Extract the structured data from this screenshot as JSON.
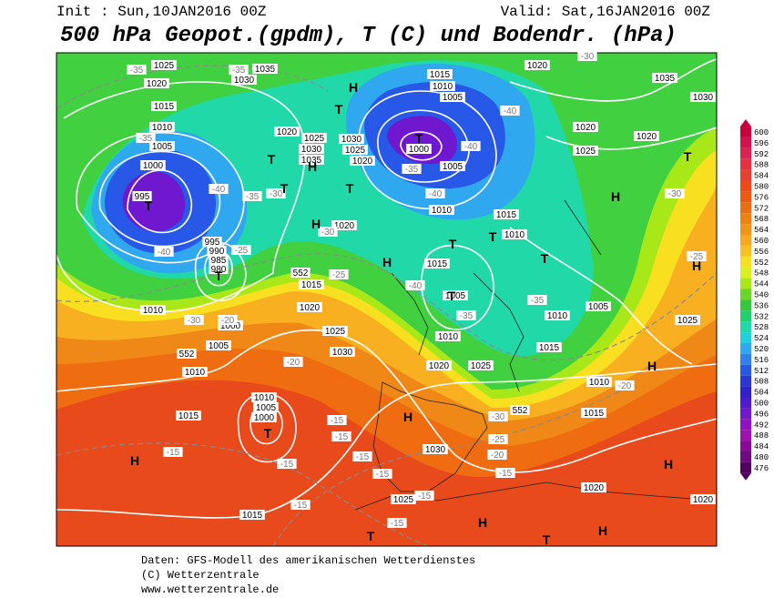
{
  "header": {
    "init": "Init : Sun,10JAN2016 00Z",
    "valid": "Valid: Sat,16JAN2016 00Z",
    "title": "500 hPa Geopot.(gpdm), T (C) und Bodendr. (hPa)"
  },
  "colorbar": {
    "levels": [
      600,
      596,
      592,
      588,
      584,
      580,
      576,
      572,
      568,
      564,
      560,
      556,
      552,
      548,
      544,
      540,
      536,
      532,
      528,
      524,
      520,
      516,
      512,
      508,
      504,
      500,
      496,
      492,
      488,
      484,
      480,
      476
    ],
    "colors": [
      "#c8003c",
      "#d8104c",
      "#e02050",
      "#e83040",
      "#e84030",
      "#f04818",
      "#f05a10",
      "#f06c10",
      "#f08010",
      "#f09418",
      "#f8a820",
      "#f8c020",
      "#f8e020",
      "#d8f020",
      "#a8e818",
      "#68d828",
      "#38c840",
      "#20d070",
      "#20d8a8",
      "#20d0e0",
      "#30a8f0",
      "#3080f0",
      "#2858e8",
      "#2838d8",
      "#3020d0",
      "#5018d0",
      "#7018d0",
      "#9010c8",
      "#a010b0",
      "#8c0898",
      "#700880",
      "#500060"
    ]
  },
  "map": {
    "pressure_labels": [
      1025,
      1020,
      1015,
      1010,
      1005,
      1000,
      995,
      1035,
      1030,
      1020,
      1025,
      1030,
      1035,
      1030,
      1025,
      1020,
      1015,
      1010,
      1005,
      1000,
      1005,
      1010,
      1020,
      1035,
      1030,
      1020,
      1025,
      1020,
      1015,
      1010,
      1015,
      1015,
      1020,
      1010,
      1000,
      1005,
      1010,
      1025,
      1030,
      1010,
      1020,
      1025,
      1015,
      1010,
      1005,
      1010,
      1025,
      1015,
      1010,
      1005,
      1000,
      1015,
      1030,
      1025,
      1020,
      1020,
      1015,
      995,
      990,
      985,
      980,
      1020,
      1005
    ],
    "temperature_labels": [
      -35,
      -35,
      -35,
      -40,
      -35,
      -30,
      -30,
      -40,
      -25,
      -25,
      -30,
      -20,
      -20,
      -40,
      -35,
      -35,
      -40,
      -40,
      -35,
      -40,
      -30,
      -25,
      -20,
      -15,
      -15,
      -15,
      -15,
      -15,
      -15,
      -15,
      -20,
      -25,
      -15,
      -30,
      -15,
      -15,
      -30
    ],
    "geopotential_labels": [
      552,
      552,
      552
    ],
    "systems": [
      "H",
      "T",
      "H",
      "T",
      "T",
      "T",
      "H",
      "T",
      "T",
      "T",
      "H",
      "T",
      "T",
      "T",
      "T",
      "H",
      "T",
      "H",
      "H",
      "T",
      "H",
      "H",
      "H",
      "H",
      "H",
      "T",
      "T"
    ]
  },
  "footer": [
    "Daten: GFS-Modell des amerikanischen Wetterdienstes",
    "(C) Wetterzentrale",
    "www.wetterzentrale.de"
  ]
}
